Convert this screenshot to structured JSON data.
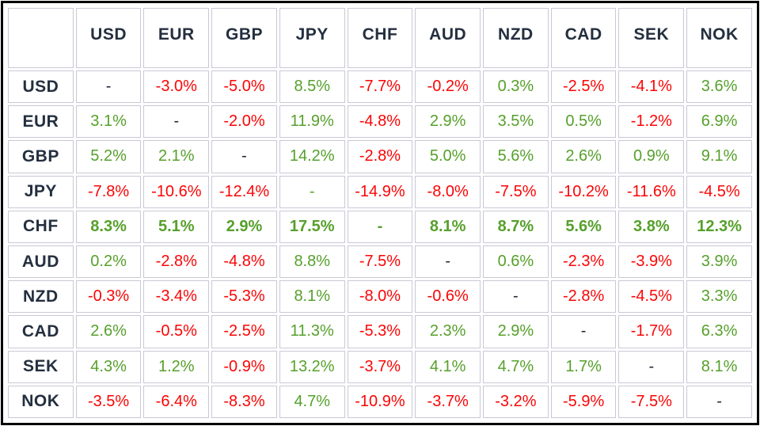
{
  "colors": {
    "positive": "#56a02b",
    "negative": "#fb0505",
    "label_text": "#242f3f",
    "neutral_dash": "#1d2636",
    "cell_border": "#c9c9d6",
    "outer_border": "#000000",
    "background": "#ffffff"
  },
  "chart_data": {
    "type": "table",
    "description": "Currency cross performance matrix; rows are base currencies, columns are quote currencies, values are percent changes (green positive, red negative)",
    "columns": [
      "USD",
      "EUR",
      "GBP",
      "JPY",
      "CHF",
      "AUD",
      "NZD",
      "CAD",
      "SEK",
      "NOK"
    ],
    "rows": [
      {
        "label": "USD",
        "bold": false,
        "cells": [
          {
            "text": "-",
            "tone": "neutral"
          },
          {
            "text": "-3.0%",
            "tone": "neg"
          },
          {
            "text": "-5.0%",
            "tone": "neg"
          },
          {
            "text": "8.5%",
            "tone": "pos"
          },
          {
            "text": "-7.7%",
            "tone": "neg"
          },
          {
            "text": "-0.2%",
            "tone": "neg"
          },
          {
            "text": "0.3%",
            "tone": "pos"
          },
          {
            "text": "-2.5%",
            "tone": "neg"
          },
          {
            "text": "-4.1%",
            "tone": "neg"
          },
          {
            "text": "3.6%",
            "tone": "pos"
          }
        ]
      },
      {
        "label": "EUR",
        "bold": false,
        "cells": [
          {
            "text": "3.1%",
            "tone": "pos"
          },
          {
            "text": "-",
            "tone": "neutral"
          },
          {
            "text": "-2.0%",
            "tone": "neg"
          },
          {
            "text": "11.9%",
            "tone": "pos"
          },
          {
            "text": "-4.8%",
            "tone": "neg"
          },
          {
            "text": "2.9%",
            "tone": "pos"
          },
          {
            "text": "3.5%",
            "tone": "pos"
          },
          {
            "text": "0.5%",
            "tone": "pos"
          },
          {
            "text": "-1.2%",
            "tone": "neg"
          },
          {
            "text": "6.9%",
            "tone": "pos"
          }
        ]
      },
      {
        "label": "GBP",
        "bold": false,
        "cells": [
          {
            "text": "5.2%",
            "tone": "pos"
          },
          {
            "text": "2.1%",
            "tone": "pos"
          },
          {
            "text": "-",
            "tone": "neutral"
          },
          {
            "text": "14.2%",
            "tone": "pos"
          },
          {
            "text": "-2.8%",
            "tone": "neg"
          },
          {
            "text": "5.0%",
            "tone": "pos"
          },
          {
            "text": "5.6%",
            "tone": "pos"
          },
          {
            "text": "2.6%",
            "tone": "pos"
          },
          {
            "text": "0.9%",
            "tone": "pos"
          },
          {
            "text": "9.1%",
            "tone": "pos"
          }
        ]
      },
      {
        "label": "JPY",
        "bold": false,
        "cells": [
          {
            "text": "-7.8%",
            "tone": "neg"
          },
          {
            "text": "-10.6%",
            "tone": "neg"
          },
          {
            "text": "-12.4%",
            "tone": "neg"
          },
          {
            "text": "-",
            "tone": "pos"
          },
          {
            "text": "-14.9%",
            "tone": "neg"
          },
          {
            "text": "-8.0%",
            "tone": "neg"
          },
          {
            "text": "-7.5%",
            "tone": "neg"
          },
          {
            "text": "-10.2%",
            "tone": "neg"
          },
          {
            "text": "-11.6%",
            "tone": "neg"
          },
          {
            "text": "-4.5%",
            "tone": "neg"
          }
        ]
      },
      {
        "label": "CHF",
        "bold": true,
        "cells": [
          {
            "text": "8.3%",
            "tone": "pos"
          },
          {
            "text": "5.1%",
            "tone": "pos"
          },
          {
            "text": "2.9%",
            "tone": "pos"
          },
          {
            "text": "17.5%",
            "tone": "pos"
          },
          {
            "text": "-",
            "tone": "pos"
          },
          {
            "text": "8.1%",
            "tone": "pos"
          },
          {
            "text": "8.7%",
            "tone": "pos"
          },
          {
            "text": "5.6%",
            "tone": "pos"
          },
          {
            "text": "3.8%",
            "tone": "pos"
          },
          {
            "text": "12.3%",
            "tone": "pos"
          }
        ]
      },
      {
        "label": "AUD",
        "bold": false,
        "cells": [
          {
            "text": "0.2%",
            "tone": "pos"
          },
          {
            "text": "-2.8%",
            "tone": "neg"
          },
          {
            "text": "-4.8%",
            "tone": "neg"
          },
          {
            "text": "8.8%",
            "tone": "pos"
          },
          {
            "text": "-7.5%",
            "tone": "neg"
          },
          {
            "text": "-",
            "tone": "neutral"
          },
          {
            "text": "0.6%",
            "tone": "pos"
          },
          {
            "text": "-2.3%",
            "tone": "neg"
          },
          {
            "text": "-3.9%",
            "tone": "neg"
          },
          {
            "text": "3.9%",
            "tone": "pos"
          }
        ]
      },
      {
        "label": "NZD",
        "bold": false,
        "cells": [
          {
            "text": "-0.3%",
            "tone": "neg"
          },
          {
            "text": "-3.4%",
            "tone": "neg"
          },
          {
            "text": "-5.3%",
            "tone": "neg"
          },
          {
            "text": "8.1%",
            "tone": "pos"
          },
          {
            "text": "-8.0%",
            "tone": "neg"
          },
          {
            "text": "-0.6%",
            "tone": "neg"
          },
          {
            "text": "-",
            "tone": "neutral"
          },
          {
            "text": "-2.8%",
            "tone": "neg"
          },
          {
            "text": "-4.5%",
            "tone": "neg"
          },
          {
            "text": "3.3%",
            "tone": "pos"
          }
        ]
      },
      {
        "label": "CAD",
        "bold": false,
        "cells": [
          {
            "text": "2.6%",
            "tone": "pos"
          },
          {
            "text": "-0.5%",
            "tone": "neg"
          },
          {
            "text": "-2.5%",
            "tone": "neg"
          },
          {
            "text": "11.3%",
            "tone": "pos"
          },
          {
            "text": "-5.3%",
            "tone": "neg"
          },
          {
            "text": "2.3%",
            "tone": "pos"
          },
          {
            "text": "2.9%",
            "tone": "pos"
          },
          {
            "text": "-",
            "tone": "neutral"
          },
          {
            "text": "-1.7%",
            "tone": "neg"
          },
          {
            "text": "6.3%",
            "tone": "pos"
          }
        ]
      },
      {
        "label": "SEK",
        "bold": false,
        "cells": [
          {
            "text": "4.3%",
            "tone": "pos"
          },
          {
            "text": "1.2%",
            "tone": "pos"
          },
          {
            "text": "-0.9%",
            "tone": "neg"
          },
          {
            "text": "13.2%",
            "tone": "pos"
          },
          {
            "text": "-3.7%",
            "tone": "neg"
          },
          {
            "text": "4.1%",
            "tone": "pos"
          },
          {
            "text": "4.7%",
            "tone": "pos"
          },
          {
            "text": "1.7%",
            "tone": "pos"
          },
          {
            "text": "-",
            "tone": "neutral"
          },
          {
            "text": "8.1%",
            "tone": "pos"
          }
        ]
      },
      {
        "label": "NOK",
        "bold": false,
        "cells": [
          {
            "text": "-3.5%",
            "tone": "neg"
          },
          {
            "text": "-6.4%",
            "tone": "neg"
          },
          {
            "text": "-8.3%",
            "tone": "neg"
          },
          {
            "text": "4.7%",
            "tone": "pos"
          },
          {
            "text": "-10.9%",
            "tone": "neg"
          },
          {
            "text": "-3.7%",
            "tone": "neg"
          },
          {
            "text": "-3.2%",
            "tone": "neg"
          },
          {
            "text": "-5.9%",
            "tone": "neg"
          },
          {
            "text": "-7.5%",
            "tone": "neg"
          },
          {
            "text": "-",
            "tone": "neutral"
          }
        ]
      }
    ]
  }
}
